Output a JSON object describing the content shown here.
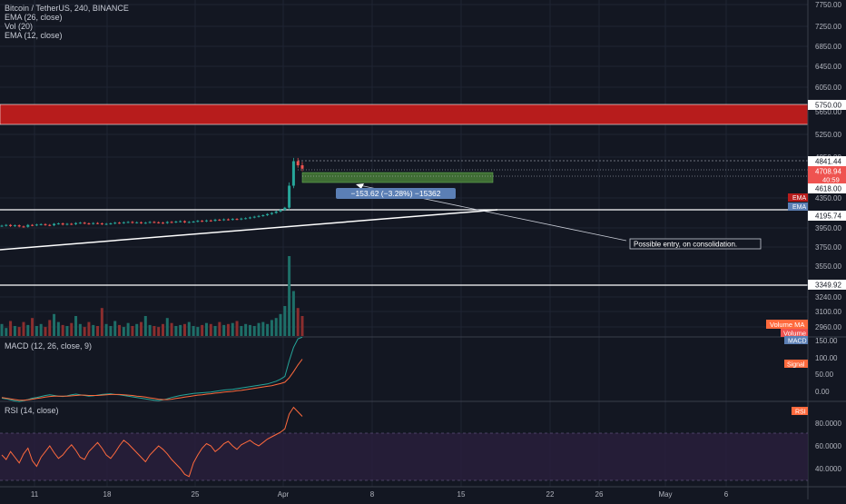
{
  "header": {
    "symbol": "Bitcoin / TetherUS, 240, BINANCE",
    "indicators": [
      "EMA (26, close)",
      "Vol (20)",
      "EMA (12, close)"
    ]
  },
  "price_axis": {
    "ticks": [
      "7750.00",
      "7250.00",
      "6850.00",
      "6450.00",
      "6050.00",
      "5650.00",
      "5250.00",
      "4850.00",
      "4350.00",
      "3950.00",
      "3750.00",
      "3550.00",
      "3240.00",
      "3100.00",
      "2960.00"
    ]
  },
  "price_labels": {
    "zone_top": "5750.00",
    "high": "4841.44",
    "current": "4708.94",
    "countdown": "40:59",
    "low_green": "4618.00",
    "support": "4195.74",
    "bottom_line": "3349.92"
  },
  "badges": {
    "ema": "EMA",
    "ema2": "EMA",
    "volume_ma": "Volume MA",
    "volume": "Volume",
    "macd": "MACD",
    "signal": "Signal",
    "rsi": "RSI"
  },
  "annotations": {
    "measure": "−153.62 (−3.28%) −15362",
    "note": "Possible entry, on consolidation."
  },
  "macd_panel": {
    "title": "MACD (12, 26, close, 9)",
    "ticks": [
      "150.00",
      "100.00",
      "50.00",
      "0.00"
    ]
  },
  "rsi_panel": {
    "title": "RSI (14, close)",
    "ticks": [
      "80.0000",
      "60.0000",
      "40.0000"
    ]
  },
  "time_axis": {
    "ticks": [
      "11",
      "18",
      "25",
      "Apr",
      "8",
      "15",
      "22",
      "26",
      "May",
      "6"
    ]
  },
  "colors": {
    "background": "#131722",
    "up": "#26a69a",
    "down": "#ef5350",
    "red_zone": "#b71c1c",
    "green_zone": "#3f6d34",
    "macd": "#26a69a",
    "signal": "#ff6a3d",
    "rsi": "#ff6a3d",
    "rsi_band": "#2a1f3d"
  },
  "chart_data": {
    "type": "candlestick",
    "price": {
      "ylim_top": 7750,
      "series_close": [
        3980,
        3990,
        3975,
        3985,
        3970,
        3965,
        3990,
        3985,
        3995,
        4000,
        3990,
        3985,
        4005,
        4010,
        3995,
        4005,
        4000,
        4015,
        4020,
        4010,
        4005,
        4015,
        4010,
        4000,
        4005,
        4010,
        4020,
        4015,
        4025,
        4030,
        4020,
        4025,
        4015,
        4020,
        4030,
        4025,
        4020,
        4015,
        4030,
        4025,
        4035,
        4040,
        4025,
        4030,
        4035,
        4045,
        4040,
        4050,
        4045,
        4060,
        4055,
        4065,
        4060,
        4070,
        4065,
        4075,
        4080,
        4090,
        4100,
        4110,
        4120,
        4135,
        4150,
        4170,
        4190,
        4220,
        4500,
        4800,
        4750,
        4708
      ]
    },
    "levels": {
      "red_zone": [
        5650,
        5750
      ],
      "green_zone": [
        4618,
        4650
      ],
      "support": 4195.74,
      "bottom": 3349.92,
      "high": 4841.44
    },
    "volume": [
      12,
      8,
      15,
      10,
      9,
      14,
      11,
      18,
      10,
      12,
      9,
      16,
      22,
      14,
      11,
      10,
      13,
      20,
      12,
      9,
      14,
      11,
      10,
      28,
      12,
      10,
      15,
      11,
      9,
      13,
      10,
      12,
      14,
      20,
      11,
      10,
      9,
      12,
      18,
      13,
      10,
      11,
      12,
      14,
      10,
      9,
      11,
      13,
      12,
      10,
      14,
      11,
      12,
      13,
      15,
      10,
      12,
      11,
      10,
      13,
      14,
      12,
      16,
      18,
      22,
      30,
      80,
      45,
      28,
      20
    ],
    "macd": [
      -20,
      -22,
      -25,
      -28,
      -30,
      -27,
      -24,
      -20,
      -18,
      -15,
      -12,
      -10,
      -12,
      -14,
      -15,
      -13,
      -10,
      -8,
      -10,
      -12,
      -14,
      -13,
      -11,
      -9,
      -8,
      -7,
      -9,
      -10,
      -12,
      -14,
      -16,
      -18,
      -20,
      -22,
      -24,
      -26,
      -27,
      -25,
      -22,
      -18,
      -15,
      -12,
      -10,
      -8,
      -6,
      -5,
      -4,
      -3,
      -2,
      0,
      2,
      4,
      5,
      6,
      8,
      10,
      12,
      14,
      16,
      18,
      20,
      22,
      26,
      30,
      36,
      44,
      90,
      130,
      155,
      160
    ],
    "signal": [
      -18,
      -20,
      -22,
      -24,
      -26,
      -26,
      -25,
      -23,
      -21,
      -19,
      -17,
      -15,
      -14,
      -14,
      -14,
      -14,
      -13,
      -12,
      -11,
      -11,
      -12,
      -12,
      -12,
      -11,
      -10,
      -9,
      -9,
      -9,
      -10,
      -11,
      -12,
      -14,
      -15,
      -17,
      -19,
      -21,
      -23,
      -24,
      -24,
      -23,
      -21,
      -19,
      -17,
      -15,
      -13,
      -11,
      -10,
      -8,
      -7,
      -5,
      -4,
      -2,
      -1,
      0,
      2,
      3,
      5,
      7,
      9,
      11,
      13,
      15,
      17,
      20,
      23,
      27,
      40,
      58,
      78,
      95
    ],
    "rsi": [
      52,
      48,
      55,
      50,
      45,
      53,
      58,
      47,
      42,
      50,
      55,
      60,
      54,
      49,
      52,
      57,
      61,
      56,
      50,
      48,
      55,
      59,
      63,
      58,
      52,
      49,
      54,
      60,
      65,
      62,
      58,
      54,
      50,
      46,
      52,
      56,
      60,
      57,
      53,
      48,
      44,
      40,
      35,
      33,
      45,
      52,
      58,
      62,
      60,
      55,
      58,
      62,
      64,
      60,
      57,
      61,
      63,
      65,
      62,
      60,
      63,
      66,
      68,
      70,
      72,
      75,
      88,
      94,
      90,
      86
    ]
  }
}
